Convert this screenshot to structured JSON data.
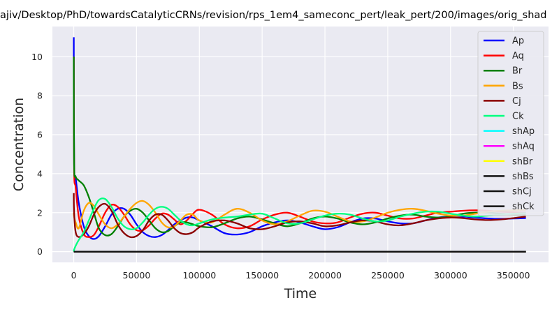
{
  "chart_data": {
    "type": "line",
    "title": "ajiv/Desktop/PhD/towardsCatalyticCRNs/revision/rps_1em4_sameconc_pert/leak_pert/200/images/orig_shad",
    "xlabel": "Time",
    "ylabel": "Concentration",
    "xlim": [
      -17000,
      378000
    ],
    "ylim": [
      -0.55,
      11.55
    ],
    "xticks": [
      0,
      50000,
      100000,
      150000,
      200000,
      250000,
      300000,
      350000
    ],
    "xtick_labels": [
      "0",
      "50000",
      "100000",
      "150000",
      "200000",
      "250000",
      "300000",
      "350000"
    ],
    "yticks": [
      0,
      2,
      4,
      6,
      8,
      10
    ],
    "ytick_labels": [
      "0",
      "2",
      "4",
      "6",
      "8",
      "10"
    ],
    "grid": true,
    "legend_position": "top-right",
    "series": [
      {
        "name": "Ap",
        "color": "#0000ff",
        "x": [
          0,
          300,
          1500,
          4000,
          8000,
          12000,
          16000,
          20000,
          25000,
          30000,
          35000,
          40000,
          45000,
          50000,
          55000,
          60000,
          65000,
          70000,
          75000,
          80000,
          85000,
          90000,
          95000,
          100000,
          110000,
          120000,
          130000,
          140000,
          150000,
          160000,
          170000,
          180000,
          190000,
          200000,
          210000,
          220000,
          230000,
          240000,
          250000,
          260000,
          270000,
          280000,
          290000,
          300000,
          310000,
          320000,
          330000,
          340000,
          350000,
          360000
        ],
        "y": [
          11,
          4.5,
          3.8,
          2.5,
          1.3,
          0.8,
          0.65,
          0.8,
          1.3,
          1.9,
          2.2,
          2.2,
          1.9,
          1.4,
          1.0,
          0.8,
          0.75,
          0.85,
          1.1,
          1.4,
          1.6,
          1.75,
          1.75,
          1.6,
          1.3,
          0.95,
          0.88,
          1.0,
          1.3,
          1.5,
          1.6,
          1.5,
          1.3,
          1.15,
          1.25,
          1.5,
          1.7,
          1.7,
          1.55,
          1.45,
          1.45,
          1.6,
          1.75,
          1.8,
          1.8,
          1.75,
          1.7,
          1.68,
          1.7,
          1.72
        ]
      },
      {
        "name": "Aq",
        "color": "#ff0000",
        "x": [
          0,
          300,
          1500,
          4000,
          8000,
          12000,
          16000,
          20000,
          25000,
          30000,
          35000,
          40000,
          45000,
          50000,
          55000,
          60000,
          65000,
          70000,
          75000,
          80000,
          85000,
          90000,
          95000,
          100000,
          110000,
          120000,
          130000,
          140000,
          150000,
          160000,
          170000,
          180000,
          190000,
          200000,
          210000,
          220000,
          230000,
          240000,
          250000,
          260000,
          270000,
          280000,
          290000,
          300000,
          310000,
          320000,
          330000,
          340000,
          350000,
          360000
        ],
        "y": [
          10,
          4.2,
          3.3,
          1.8,
          0.9,
          0.75,
          0.85,
          1.3,
          2.0,
          2.4,
          2.3,
          1.9,
          1.4,
          1.1,
          1.1,
          1.35,
          1.7,
          1.95,
          1.9,
          1.65,
          1.4,
          1.6,
          1.95,
          2.15,
          1.9,
          1.4,
          1.2,
          1.3,
          1.65,
          1.9,
          2.0,
          1.8,
          1.55,
          1.45,
          1.5,
          1.75,
          1.95,
          2.0,
          1.85,
          1.7,
          1.7,
          1.85,
          2.0,
          2.05,
          2.1,
          2.12,
          2.1,
          2.05,
          2.02,
          2.0
        ]
      },
      {
        "name": "Br",
        "color": "#008000",
        "x": [
          0,
          300,
          1500,
          4000,
          8000,
          12000,
          16000,
          20000,
          25000,
          30000,
          35000,
          40000,
          45000,
          50000,
          55000,
          60000,
          65000,
          70000,
          75000,
          80000,
          85000,
          90000,
          95000,
          100000,
          110000,
          120000,
          130000,
          140000,
          150000,
          160000,
          170000,
          180000,
          190000,
          200000,
          210000,
          220000,
          230000,
          240000,
          250000,
          260000,
          270000,
          280000,
          290000,
          300000,
          310000,
          320000,
          330000,
          340000,
          350000,
          360000
        ],
        "y": [
          10,
          4.5,
          3.85,
          3.65,
          3.4,
          2.8,
          2.0,
          1.2,
          0.85,
          0.9,
          1.3,
          1.8,
          2.1,
          2.2,
          2.0,
          1.6,
          1.2,
          1.0,
          1.05,
          1.3,
          1.5,
          1.5,
          1.4,
          1.3,
          1.25,
          1.45,
          1.7,
          1.8,
          1.65,
          1.45,
          1.3,
          1.45,
          1.7,
          1.8,
          1.7,
          1.5,
          1.4,
          1.5,
          1.7,
          1.85,
          1.9,
          1.8,
          1.75,
          1.8,
          1.95,
          2.0,
          2.0,
          1.95,
          1.9,
          1.88
        ]
      },
      {
        "name": "Bs",
        "color": "#ffa500",
        "x": [
          0,
          300,
          1500,
          4000,
          8000,
          12000,
          16000,
          20000,
          25000,
          30000,
          35000,
          40000,
          45000,
          50000,
          55000,
          60000,
          65000,
          70000,
          75000,
          80000,
          85000,
          90000,
          95000,
          100000,
          110000,
          120000,
          130000,
          140000,
          150000,
          160000,
          170000,
          180000,
          190000,
          200000,
          210000,
          220000,
          230000,
          240000,
          250000,
          260000,
          270000,
          280000,
          290000,
          300000,
          310000,
          320000,
          330000,
          340000,
          350000,
          360000
        ],
        "y": [
          2,
          1.8,
          1.5,
          1.2,
          2.1,
          2.5,
          2.35,
          1.9,
          1.4,
          1.2,
          1.4,
          1.8,
          2.2,
          2.5,
          2.6,
          2.4,
          2.0,
          1.5,
          1.25,
          1.3,
          1.6,
          1.9,
          1.9,
          1.6,
          1.5,
          1.9,
          2.2,
          2.0,
          1.6,
          1.4,
          1.55,
          1.85,
          2.1,
          2.05,
          1.8,
          1.55,
          1.55,
          1.75,
          2.0,
          2.15,
          2.2,
          2.1,
          1.95,
          1.85,
          1.85,
          1.95,
          2.05,
          2.1,
          2.12,
          2.15
        ]
      },
      {
        "name": "Cj",
        "color": "#8b0000",
        "x": [
          0,
          300,
          1500,
          4000,
          8000,
          12000,
          16000,
          20000,
          25000,
          30000,
          35000,
          40000,
          45000,
          50000,
          55000,
          60000,
          65000,
          70000,
          75000,
          80000,
          85000,
          90000,
          95000,
          100000,
          110000,
          120000,
          130000,
          140000,
          150000,
          160000,
          170000,
          180000,
          190000,
          200000,
          210000,
          220000,
          230000,
          240000,
          250000,
          260000,
          270000,
          280000,
          290000,
          300000,
          310000,
          320000,
          330000,
          340000,
          350000,
          360000
        ],
        "y": [
          3,
          2.0,
          1.0,
          0.75,
          0.9,
          1.3,
          1.9,
          2.3,
          2.45,
          2.1,
          1.4,
          0.95,
          0.75,
          0.8,
          1.1,
          1.6,
          1.9,
          1.9,
          1.6,
          1.2,
          0.95,
          0.9,
          1.0,
          1.25,
          1.55,
          1.6,
          1.45,
          1.2,
          1.15,
          1.3,
          1.5,
          1.55,
          1.45,
          1.3,
          1.35,
          1.5,
          1.6,
          1.55,
          1.4,
          1.35,
          1.45,
          1.6,
          1.7,
          1.75,
          1.72,
          1.65,
          1.62,
          1.65,
          1.72,
          1.8
        ]
      },
      {
        "name": "Ck",
        "color": "#00ff7f",
        "x": [
          0,
          300,
          1500,
          4000,
          8000,
          12000,
          16000,
          20000,
          25000,
          30000,
          35000,
          40000,
          45000,
          50000,
          55000,
          60000,
          65000,
          70000,
          75000,
          80000,
          85000,
          90000,
          95000,
          100000,
          110000,
          120000,
          130000,
          140000,
          150000,
          160000,
          170000,
          180000,
          190000,
          200000,
          210000,
          220000,
          230000,
          240000,
          250000,
          260000,
          270000,
          280000,
          290000,
          300000,
          310000,
          320000,
          330000,
          340000,
          350000,
          360000
        ],
        "y": [
          0,
          0.1,
          0.3,
          0.6,
          1.0,
          1.6,
          2.2,
          2.65,
          2.7,
          2.3,
          1.7,
          1.3,
          1.15,
          1.2,
          1.5,
          1.9,
          2.2,
          2.3,
          2.2,
          1.9,
          1.6,
          1.4,
          1.35,
          1.45,
          1.65,
          1.75,
          1.8,
          1.9,
          1.95,
          1.7,
          1.45,
          1.45,
          1.65,
          1.85,
          1.95,
          1.9,
          1.7,
          1.55,
          1.6,
          1.8,
          1.95,
          2.05,
          2.05,
          1.95,
          1.85,
          1.8,
          1.85,
          1.9,
          1.95,
          1.98
        ]
      },
      {
        "name": "shAp",
        "color": "#00ffff",
        "x": [
          0,
          360000
        ],
        "y": [
          0,
          0
        ]
      },
      {
        "name": "shAq",
        "color": "#ff00ff",
        "x": [
          0,
          360000
        ],
        "y": [
          0,
          0
        ]
      },
      {
        "name": "shBr",
        "color": "#ffff00",
        "x": [
          0,
          360000
        ],
        "y": [
          0,
          0
        ]
      },
      {
        "name": "shBs",
        "color": "#111111",
        "x": [
          0,
          360000
        ],
        "y": [
          0,
          0
        ]
      },
      {
        "name": "shCj",
        "color": "#111111",
        "x": [
          0,
          360000
        ],
        "y": [
          0,
          0
        ]
      },
      {
        "name": "shCk",
        "color": "#111111",
        "x": [
          0,
          360000
        ],
        "y": [
          0,
          0
        ]
      }
    ]
  }
}
